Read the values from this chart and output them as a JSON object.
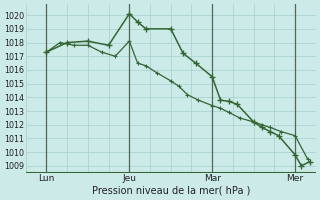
{
  "xlabel": "Pression niveau de la mer( hPa )",
  "ylim": [
    1008.5,
    1020.8
  ],
  "yticks": [
    1009,
    1010,
    1011,
    1012,
    1013,
    1014,
    1015,
    1016,
    1017,
    1018,
    1019,
    1020
  ],
  "xlim": [
    0.0,
    7.0
  ],
  "background_color": "#cceae8",
  "grid_color": "#aad4d2",
  "line_color": "#336633",
  "border_color": "#336633",
  "vline_color": "#556655",
  "xtick_pos": [
    0.5,
    2.5,
    4.5,
    6.5
  ],
  "xtick_labels": [
    "Lun",
    "Jeu",
    "Mar",
    "Mer"
  ],
  "vlines": [
    0.5,
    2.5,
    4.5,
    6.5
  ],
  "series1_x": [
    0.5,
    0.83,
    1.16,
    1.5,
    1.83,
    2.16,
    2.5,
    2.7,
    2.9,
    3.16,
    3.5,
    3.7,
    3.9,
    4.16,
    4.5,
    4.7,
    4.9,
    5.16,
    5.5,
    5.7,
    5.9,
    6.16,
    6.5,
    6.8
  ],
  "series1_y": [
    1017.3,
    1018.0,
    1017.8,
    1017.8,
    1017.3,
    1017.0,
    1018.1,
    1016.5,
    1016.3,
    1015.8,
    1015.2,
    1014.8,
    1014.2,
    1013.8,
    1013.4,
    1013.2,
    1012.9,
    1012.5,
    1012.2,
    1012.0,
    1011.8,
    1011.5,
    1011.2,
    1009.5
  ],
  "series2_x": [
    0.5,
    1.0,
    1.5,
    2.0,
    2.5,
    2.7,
    2.9,
    3.5,
    3.8,
    4.1,
    4.5,
    4.7,
    4.9,
    5.1,
    5.5,
    5.7,
    5.9,
    6.1,
    6.5,
    6.65,
    6.85
  ],
  "series2_y": [
    1017.3,
    1018.0,
    1018.1,
    1017.8,
    1020.1,
    1019.5,
    1019.0,
    1019.0,
    1017.2,
    1016.5,
    1015.5,
    1013.8,
    1013.7,
    1013.5,
    1012.2,
    1011.8,
    1011.5,
    1011.2,
    1009.8,
    1009.0,
    1009.3
  ]
}
